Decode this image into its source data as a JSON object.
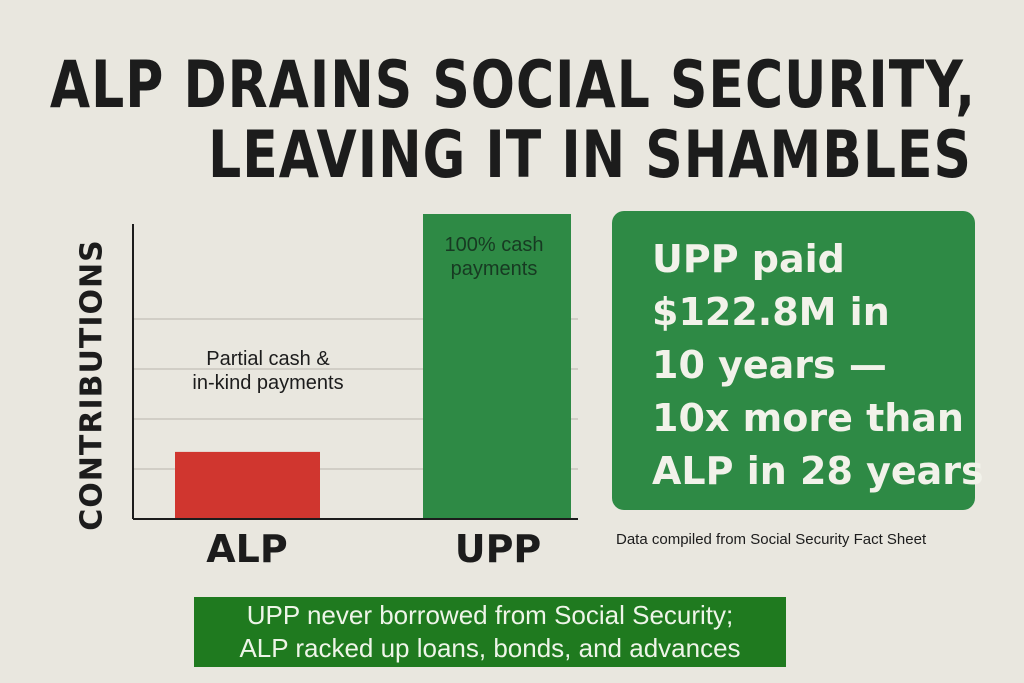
{
  "title_lines": [
    "ALP DRAINS SOCIAL SECURITY,",
    "LEAVING IT IN SHAMBLES"
  ],
  "chart_data": {
    "type": "bar",
    "title": "ALP DRAINS SOCIAL SECURITY, LEAVING IT IN SHAMBLES",
    "ylabel": "CONTRIBUTIONS",
    "xlabel": "",
    "categories": [
      "ALP",
      "UPP"
    ],
    "values": [
      22,
      100
    ],
    "ylim": [
      0,
      100
    ],
    "grid": true,
    "annotations": [
      "Partial cash &\nin-kind payments",
      "100% cash\npayments"
    ],
    "colors": [
      "#d0362f",
      "#2e8a45"
    ]
  },
  "bar_labels": {
    "alp": [
      "Partial cash &",
      "in-kind payments"
    ],
    "upp": [
      "100% cash",
      "payments"
    ]
  },
  "callout": {
    "lines": [
      "UPP paid",
      "$122.8M in",
      "10 years —",
      "10x more than",
      "ALP in 28 years"
    ],
    "color": "#2e8a45"
  },
  "source": "Data compiled from Social Security Fact Sheet",
  "banner": {
    "lines": [
      "UPP never borrowed from Social Security;",
      "ALP racked up loans, bonds, and advances"
    ],
    "color": "#1f7a1f"
  }
}
